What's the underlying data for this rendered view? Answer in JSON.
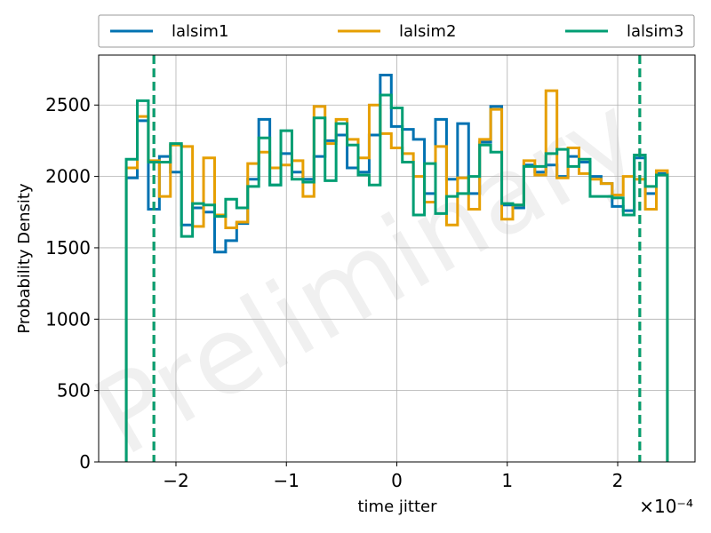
{
  "chart_data": {
    "type": "line",
    "title": "",
    "xlabel": "time jitter",
    "ylabel": "Probability Density",
    "x_offset_label": "×10⁻⁴",
    "watermark": "Preliminary",
    "xlim": [
      -2.7,
      2.7
    ],
    "ylim": [
      0,
      2850
    ],
    "xticks": [
      -2,
      -1,
      0,
      1,
      2
    ],
    "xtick_labels": [
      "−2",
      "−1",
      "0",
      "1",
      "2"
    ],
    "yticks": [
      0,
      500,
      1000,
      1500,
      2000,
      2500
    ],
    "ytick_labels": [
      "0",
      "500",
      "1000",
      "1500",
      "2000",
      "2500"
    ],
    "grid": true,
    "legend_position": "top (above plot, 3 columns)",
    "bin_edges": [
      -2.45,
      -2.35,
      -2.25,
      -2.15,
      -2.05,
      -1.95,
      -1.85,
      -1.75,
      -1.65,
      -1.55,
      -1.45,
      -1.35,
      -1.25,
      -1.15,
      -1.05,
      -0.95,
      -0.85,
      -0.75,
      -0.65,
      -0.55,
      -0.45,
      -0.35,
      -0.25,
      -0.15,
      -0.05,
      0.05,
      0.15,
      0.25,
      0.35,
      0.45,
      0.55,
      0.65,
      0.75,
      0.85,
      0.95,
      1.05,
      1.15,
      1.25,
      1.35,
      1.45,
      1.55,
      1.65,
      1.75,
      1.85,
      1.95,
      2.05,
      2.15,
      2.25,
      2.35,
      2.45
    ],
    "series": [
      {
        "name": "lalsim1",
        "color": "#0072b2",
        "values": [
          1990,
          2390,
          1770,
          2140,
          2030,
          1660,
          1780,
          1750,
          1470,
          1550,
          1670,
          1980,
          2400,
          1940,
          2160,
          2030,
          1980,
          2140,
          2250,
          2290,
          2060,
          2030,
          2290,
          2710,
          2350,
          2330,
          2260,
          1880,
          2400,
          1980,
          2370,
          1880,
          2240,
          2490,
          1800,
          1780,
          2080,
          2030,
          2080,
          2000,
          2140,
          2100,
          2000,
          1950,
          1790,
          1760,
          2130,
          1880,
          2020
        ],
        "dashed_marker": -2.2
      },
      {
        "name": "lalsim2",
        "color": "#e69f00",
        "values": [
          2060,
          2420,
          2110,
          1860,
          2220,
          2210,
          1650,
          2130,
          1730,
          1640,
          1680,
          2090,
          2170,
          2060,
          2080,
          2110,
          1860,
          2490,
          2230,
          2400,
          2260,
          2130,
          2500,
          2300,
          2200,
          2160,
          2000,
          1820,
          2210,
          1660,
          1990,
          1770,
          2260,
          2470,
          1700,
          1800,
          2110,
          2010,
          2600,
          1990,
          2200,
          2020,
          1980,
          1950,
          1870,
          2000,
          1980,
          1770,
          2040
        ],
        "dashed_marker": -2.2
      },
      {
        "name": "lalsim3",
        "color": "#009e73",
        "values": [
          2120,
          2530,
          2100,
          2100,
          2230,
          1580,
          1810,
          1800,
          1720,
          1840,
          1780,
          1930,
          2270,
          1940,
          2320,
          1980,
          1960,
          2410,
          1970,
          2370,
          2220,
          2010,
          1940,
          2570,
          2480,
          2100,
          1730,
          2090,
          1740,
          1860,
          1880,
          2000,
          2220,
          2170,
          1810,
          1800,
          2070,
          2070,
          2160,
          2190,
          2070,
          2120,
          1860,
          1860,
          1850,
          1730,
          2150,
          1930,
          2010
        ],
        "dashed_marker": 2.2
      }
    ],
    "dashed_markers": [
      -2.2,
      2.2
    ]
  }
}
